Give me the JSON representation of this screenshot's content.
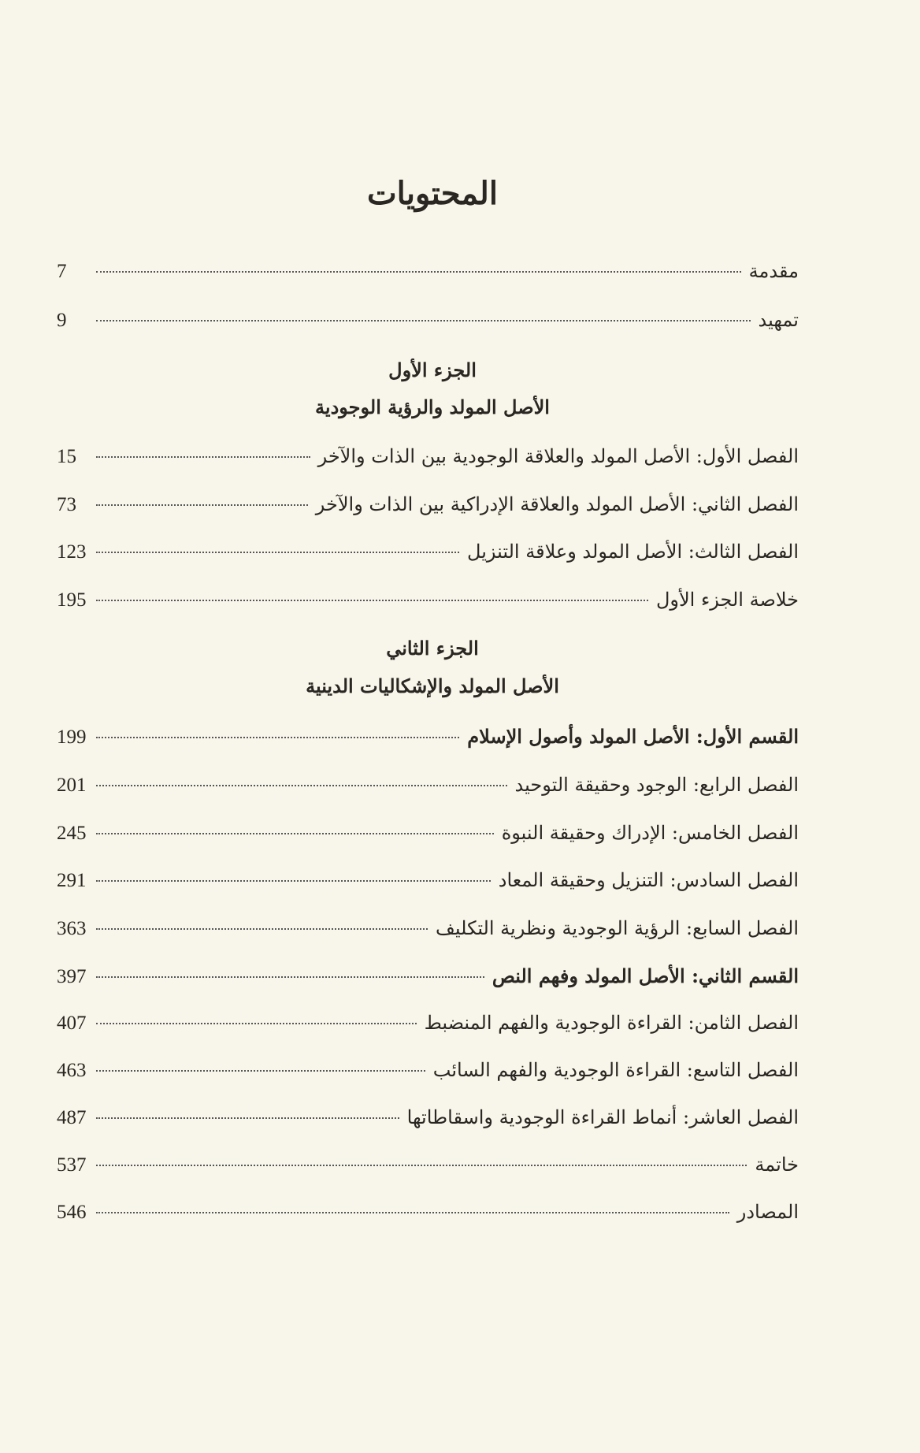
{
  "title": "المحتويات",
  "entries_intro": [
    {
      "label": "مقدمة",
      "page": "7"
    },
    {
      "label": "تمهيد",
      "page": "9"
    }
  ],
  "part1": {
    "heading": "الجزء الأول",
    "subtitle": "الأصل المولد والرؤية الوجودية",
    "entries": [
      {
        "label": "الفصل الأول: الأصل المولد والعلاقة الوجودية بين الذات والآخر",
        "page": "15"
      },
      {
        "label": "الفصل الثاني: الأصل المولد والعلاقة الإدراكية بين الذات والآخر",
        "page": "73"
      },
      {
        "label": "الفصل الثالث: الأصل المولد وعلاقة التنزيل",
        "page": "123"
      },
      {
        "label": "خلاصة الجزء الأول",
        "page": "195"
      }
    ]
  },
  "part2": {
    "heading": "الجزء الثاني",
    "subtitle": "الأصل المولد والإشكاليات الدينية",
    "entries": [
      {
        "label": "القسم الأول: الأصل المولد وأصول الإسلام",
        "page": "199"
      },
      {
        "label": "الفصل الرابع: الوجود وحقيقة التوحيد",
        "page": "201"
      },
      {
        "label": "الفصل الخامس: الإدراك وحقيقة النبوة",
        "page": "245"
      },
      {
        "label": "الفصل السادس: التنزيل وحقيقة المعاد",
        "page": "291"
      },
      {
        "label": "الفصل السابع: الرؤية الوجودية ونظرية التكليف",
        "page": "363"
      },
      {
        "label": "القسم الثاني: الأصل المولد وفهم النص",
        "page": "397"
      },
      {
        "label": "الفصل الثامن: القراءة الوجودية والفهم المنضبط",
        "page": "407"
      },
      {
        "label": "الفصل التاسع: القراءة الوجودية والفهم السائب",
        "page": "463"
      },
      {
        "label": "الفصل العاشر: أنماط القراءة الوجودية واسقاطاتها",
        "page": "487"
      },
      {
        "label": "خاتمة",
        "page": "537"
      },
      {
        "label": "المصادر",
        "page": "546"
      }
    ]
  }
}
